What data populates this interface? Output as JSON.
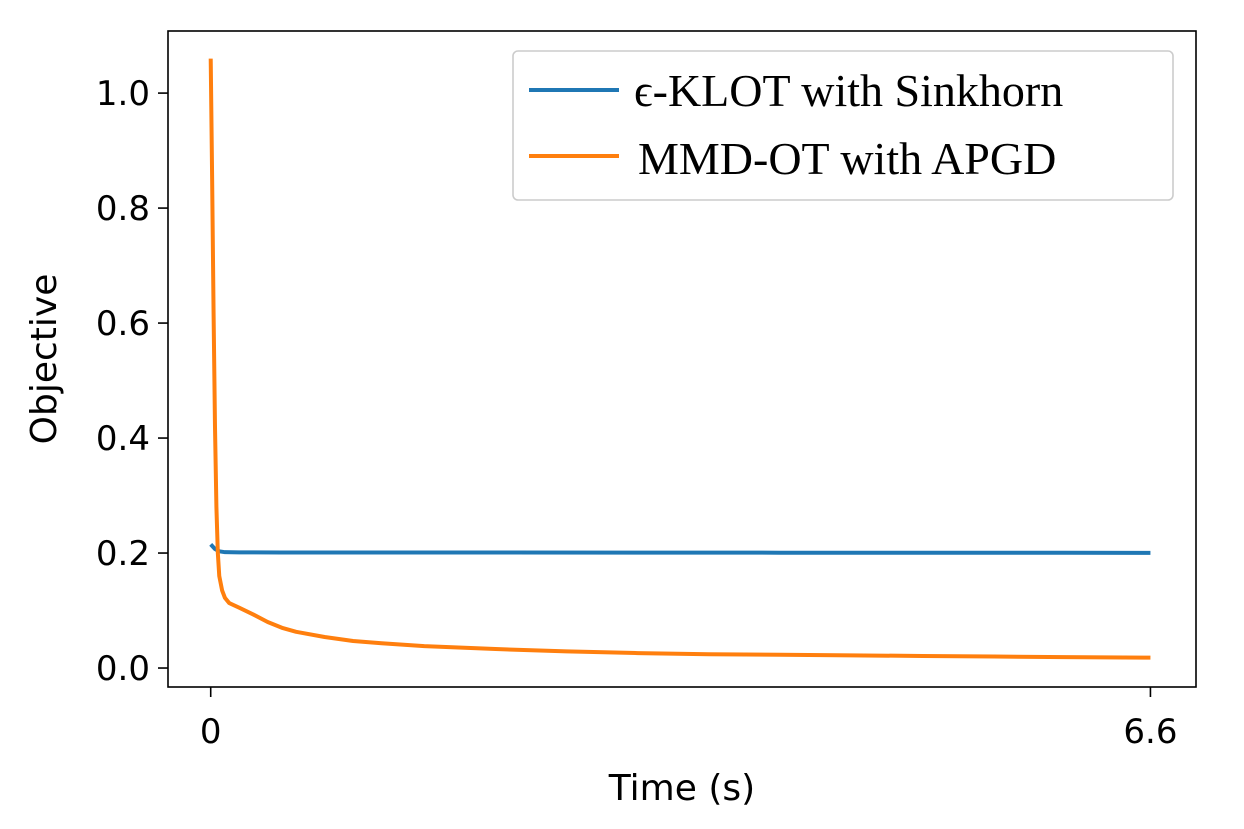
{
  "chart_data": {
    "type": "line",
    "title": "",
    "xlabel": "Time (s)",
    "ylabel": "Objective",
    "xlim": [
      -0.3,
      6.92
    ],
    "ylim": [
      -0.033,
      1.108
    ],
    "x_ticks": [
      0,
      6.6
    ],
    "x_tick_labels": [
      "0",
      "6.6"
    ],
    "y_ticks": [
      0.0,
      0.2,
      0.4,
      0.6,
      0.8,
      1.0
    ],
    "y_tick_labels": [
      "0.0",
      "0.2",
      "0.4",
      "0.6",
      "0.8",
      "1.0"
    ],
    "grid": false,
    "legend_position": "top-right",
    "series": [
      {
        "name": "ϵ-KLOT with Sinkhorn",
        "color": "#1f77b4",
        "x": [
          0,
          0.03,
          0.06,
          0.1,
          0.2,
          0.5,
          1.0,
          2.0,
          3.0,
          4.0,
          5.0,
          6.0,
          6.6
        ],
        "y": [
          0.215,
          0.207,
          0.203,
          0.2015,
          0.2012,
          0.201,
          0.201,
          0.201,
          0.2008,
          0.2006,
          0.2005,
          0.2004,
          0.2003
        ]
      },
      {
        "name": "MMD-OT with APGD",
        "color": "#ff7f0e",
        "x": [
          0,
          0.01,
          0.02,
          0.03,
          0.04,
          0.05,
          0.06,
          0.08,
          0.1,
          0.13,
          0.2,
          0.3,
          0.4,
          0.5,
          0.6,
          0.8,
          1.0,
          1.2,
          1.5,
          2.0,
          2.5,
          3.0,
          3.5,
          4.0,
          4.5,
          5.0,
          5.5,
          6.0,
          6.6
        ],
        "y": [
          1.06,
          0.85,
          0.62,
          0.42,
          0.28,
          0.2,
          0.16,
          0.135,
          0.122,
          0.113,
          0.105,
          0.093,
          0.08,
          0.07,
          0.063,
          0.054,
          0.047,
          0.043,
          0.038,
          0.033,
          0.029,
          0.026,
          0.024,
          0.023,
          0.022,
          0.021,
          0.02,
          0.019,
          0.018
        ]
      }
    ]
  }
}
